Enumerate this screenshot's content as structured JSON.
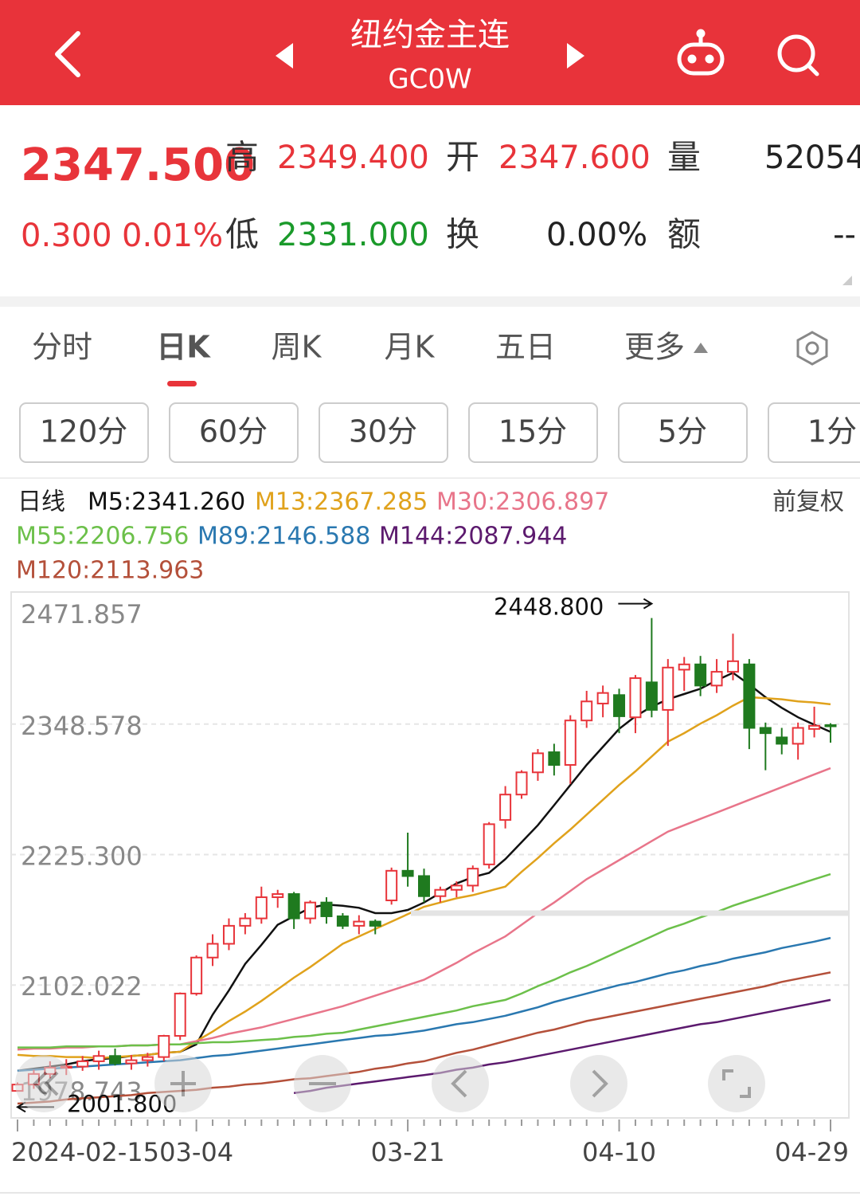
{
  "header": {
    "title": "纽约金主连",
    "code": "GC0W"
  },
  "quote": {
    "price": "2347.500",
    "change": "0.300",
    "change_pct": "0.01%",
    "fields": [
      {
        "label": "高",
        "value": "2349.400"
      },
      {
        "label": "开",
        "value": "2347.600"
      },
      {
        "label": "量",
        "value": "52054"
      },
      {
        "label": "低",
        "value": "2331.000"
      },
      {
        "label": "换",
        "value": "0.00%"
      },
      {
        "label": "额",
        "value": "--"
      }
    ]
  },
  "tabs": [
    "分时",
    "日K",
    "周K",
    "月K",
    "五日",
    "更多"
  ],
  "intervals": [
    "120分",
    "60分",
    "30分",
    "15分",
    "5分",
    "1分"
  ],
  "chart_data": {
    "type": "candlestick",
    "period_label": "日线",
    "adjust_label": "前复权",
    "categories": [
      "2024-02-15",
      null,
      null,
      null,
      null,
      null,
      null,
      null,
      null,
      null,
      null,
      "03-04",
      null,
      null,
      null,
      null,
      null,
      null,
      null,
      null,
      null,
      null,
      null,
      null,
      "03-21",
      null,
      null,
      null,
      null,
      null,
      null,
      null,
      null,
      null,
      null,
      null,
      null,
      "04-10",
      null,
      null,
      null,
      null,
      null,
      null,
      null,
      null,
      null,
      null,
      null,
      null,
      "04-29"
    ],
    "open": [
      2002,
      2008,
      2018,
      2024,
      2025,
      2030,
      2035,
      2028,
      2031,
      2034,
      2054,
      2094,
      2128,
      2141,
      2158,
      2165,
      2185,
      2188,
      2165,
      2180,
      2167,
      2158,
      2162,
      2182,
      2210,
      2205,
      2186,
      2192,
      2196,
      2216,
      2258,
      2282,
      2303,
      2322,
      2310,
      2352,
      2368,
      2376,
      2355,
      2388,
      2362,
      2400,
      2405,
      2385,
      2398,
      2405,
      2345,
      2336,
      2330,
      2344,
      2347.6
    ],
    "high": [
      2010,
      2022,
      2030,
      2032,
      2035,
      2040,
      2042,
      2036,
      2038,
      2055,
      2095,
      2130,
      2150,
      2165,
      2170,
      2195,
      2192,
      2190,
      2182,
      2185,
      2170,
      2168,
      2164,
      2213,
      2246,
      2212,
      2195,
      2200,
      2215,
      2256,
      2290,
      2305,
      2325,
      2330,
      2357,
      2380,
      2385,
      2382,
      2395,
      2448.8,
      2410,
      2412,
      2413,
      2410,
      2434,
      2410,
      2350,
      2345,
      2350,
      2365,
      2349.4
    ],
    "low": [
      2001.8,
      2004,
      2014,
      2017,
      2021,
      2022,
      2026,
      2022,
      2025,
      2030,
      2050,
      2092,
      2120,
      2135,
      2150,
      2160,
      2175,
      2155,
      2160,
      2160,
      2155,
      2150,
      2150,
      2178,
      2195,
      2180,
      2180,
      2185,
      2190,
      2212,
      2250,
      2278,
      2295,
      2300,
      2292,
      2345,
      2355,
      2340,
      2340,
      2355,
      2328,
      2380,
      2375,
      2378,
      2390,
      2325,
      2305,
      2320,
      2315,
      2336,
      2331
    ],
    "close": [
      2008,
      2018,
      2024,
      2025,
      2030,
      2035,
      2028,
      2031,
      2034,
      2054,
      2094,
      2128,
      2141,
      2158,
      2165,
      2185,
      2188,
      2165,
      2180,
      2167,
      2158,
      2162,
      2158,
      2210,
      2205,
      2186,
      2192,
      2196,
      2212,
      2254,
      2282,
      2303,
      2321,
      2310,
      2352,
      2370,
      2378,
      2356,
      2392,
      2362,
      2402,
      2405,
      2385,
      2398,
      2408,
      2345,
      2340,
      2330,
      2345,
      2347,
      2347.5
    ],
    "up_color": "#e8343a",
    "down_color": "#1f7a1f",
    "series": [
      {
        "name": "M5:2341.260",
        "color": "#111111",
        "values": [
          2021,
          2023,
          2025,
          2027,
          2030,
          2032,
          2033,
          2035,
          2036,
          2038,
          2039,
          2046,
          2074,
          2097,
          2122,
          2140,
          2159,
          2167,
          2175,
          2178,
          2177,
          2175,
          2170,
          2170,
          2173,
          2180,
          2189,
          2198,
          2204,
          2208,
          2221,
          2237,
          2253,
          2272,
          2291,
          2310,
          2327,
          2344,
          2356,
          2365,
          2372,
          2377,
          2382,
          2390,
          2397,
          2386,
          2374,
          2364,
          2355,
          2348,
          2341.26
        ]
      },
      {
        "name": "M13:2367.285",
        "color": "#e0a21c",
        "values": [
          2036,
          2035,
          2035,
          2034,
          2034,
          2033,
          2034,
          2035,
          2036,
          2038,
          2039,
          2049,
          2058,
          2068,
          2077,
          2087,
          2098,
          2109,
          2119,
          2130,
          2141,
          2148,
          2155,
          2162,
          2169,
          2176,
          2180,
          2184,
          2187,
          2191,
          2195,
          2209,
          2222,
          2236,
          2249,
          2263,
          2277,
          2291,
          2304,
          2318,
          2332,
          2340,
          2349,
          2357,
          2366,
          2374,
          2373,
          2372,
          2370,
          2369,
          2367.285
        ]
      },
      {
        "name": "M30:2306.897",
        "color": "#e8758a",
        "values": [
          2041,
          2042,
          2042,
          2043,
          2043,
          2044,
          2044,
          2045,
          2045,
          2046,
          2046,
          2049,
          2052,
          2056,
          2059,
          2062,
          2066,
          2070,
          2074,
          2078,
          2082,
          2087,
          2092,
          2097,
          2102,
          2107,
          2115,
          2123,
          2132,
          2140,
          2148,
          2159,
          2170,
          2180,
          2191,
          2202,
          2211,
          2220,
          2229,
          2238,
          2247,
          2253,
          2259,
          2265,
          2271,
          2277,
          2283,
          2289,
          2295,
          2301,
          2306.897
        ]
      },
      {
        "name": "M55:2206.756",
        "color": "#6cc04a",
        "values": [
          2043,
          2043,
          2043,
          2044,
          2044,
          2044,
          2044,
          2045,
          2045,
          2046,
          2046,
          2047,
          2048,
          2048,
          2049,
          2050,
          2051,
          2053,
          2054,
          2056,
          2057,
          2060,
          2063,
          2066,
          2069,
          2072,
          2075,
          2078,
          2082,
          2085,
          2088,
          2094,
          2101,
          2107,
          2114,
          2120,
          2127,
          2134,
          2141,
          2148,
          2155,
          2160,
          2166,
          2171,
          2177,
          2182,
          2187,
          2192,
          2197,
          2202,
          2206.756
        ]
      },
      {
        "name": "M89:2146.588",
        "color": "#2a78b0",
        "values": [
          2021,
          2022,
          2023,
          2024,
          2025,
          2026,
          2027,
          2028,
          2029,
          2030,
          2031,
          2033,
          2035,
          2036,
          2038,
          2040,
          2042,
          2044,
          2046,
          2048,
          2050,
          2052,
          2054,
          2055,
          2057,
          2059,
          2062,
          2065,
          2067,
          2070,
          2073,
          2077,
          2081,
          2086,
          2090,
          2094,
          2098,
          2102,
          2105,
          2109,
          2113,
          2116,
          2120,
          2123,
          2127,
          2130,
          2133,
          2137,
          2140,
          2143,
          2146.588
        ]
      },
      {
        "name": "M144:2087.944",
        "color": "#5c1a6e",
        "values": [
          null,
          null,
          null,
          null,
          null,
          null,
          null,
          null,
          null,
          null,
          null,
          null,
          null,
          null,
          null,
          null,
          null,
          2000,
          2002,
          2005,
          2007,
          2009,
          2011,
          2013,
          2015,
          2017,
          2019,
          2022,
          2024,
          2027,
          2029,
          2032,
          2035,
          2038,
          2041,
          2044,
          2047,
          2050,
          2053,
          2056,
          2059,
          2062,
          2065,
          2067,
          2070,
          2073,
          2076,
          2079,
          2082,
          2085,
          2087.944
        ]
      },
      {
        "name": "M120:2113.963",
        "color": "#b4503a",
        "values": [
          1990,
          1991,
          1992,
          1994,
          1995,
          1996,
          1997,
          1998,
          2000,
          2001,
          2002,
          2003,
          2005,
          2006,
          2008,
          2009,
          2011,
          2013,
          2014,
          2016,
          2018,
          2020,
          2023,
          2025,
          2028,
          2030,
          2034,
          2038,
          2041,
          2045,
          2049,
          2053,
          2057,
          2060,
          2064,
          2068,
          2071,
          2074,
          2077,
          2080,
          2083,
          2086,
          2089,
          2092,
          2095,
          2098,
          2101,
          2105,
          2108,
          2111,
          2113.963
        ]
      }
    ],
    "ylim": [
      1978.743,
      2471.857
    ],
    "yticks": [
      2471.857,
      2348.578,
      {
        "value": 2225.3,
        "label": "2225.300"
      },
      2102.022,
      1978.743
    ],
    "grid": true,
    "annotations": [
      {
        "value": 2448.8,
        "label": "2448.800"
      },
      {
        "value": 2001.8,
        "label": "2001.800"
      }
    ]
  }
}
